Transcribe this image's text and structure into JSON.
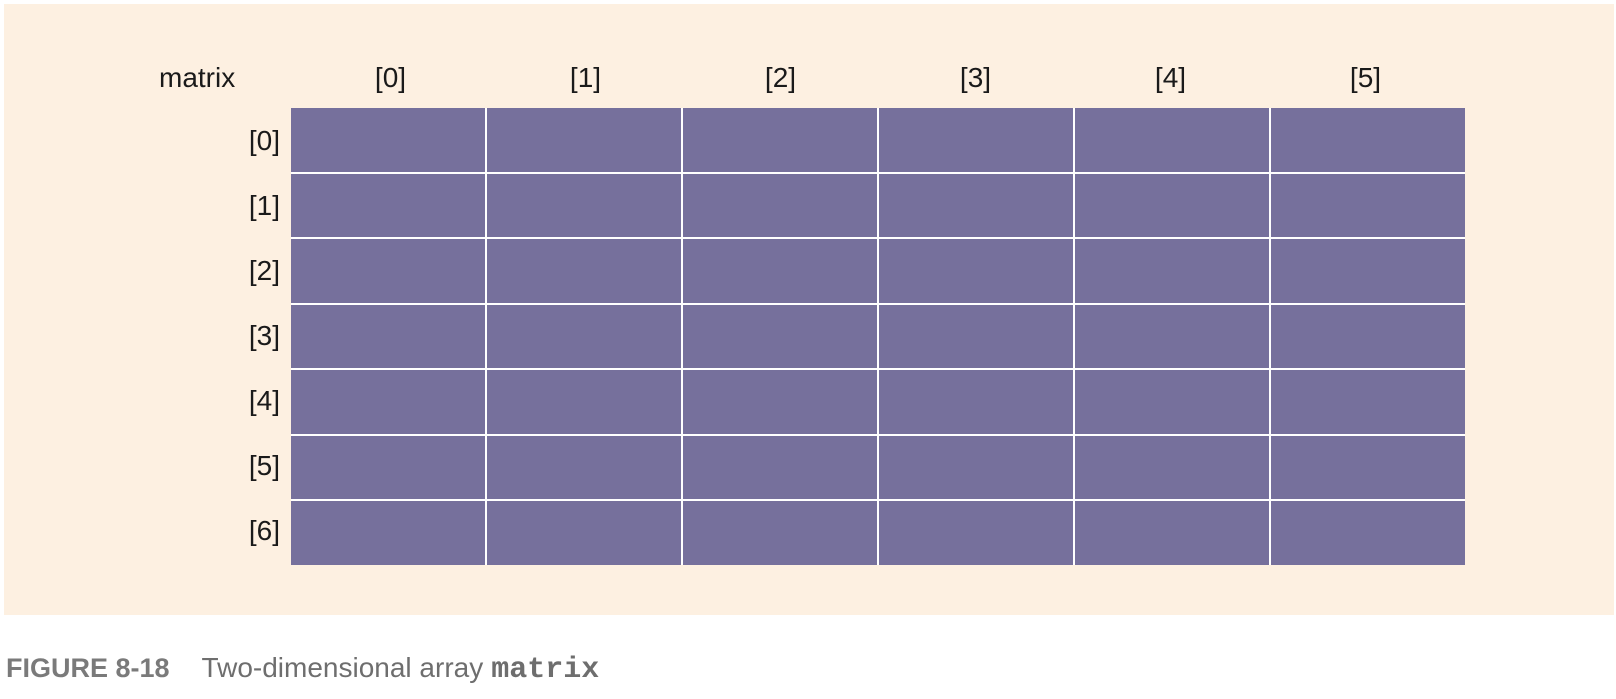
{
  "figure": {
    "array_name": "matrix",
    "column_indices": [
      "[0]",
      "[1]",
      "[2]",
      "[3]",
      "[4]",
      "[5]"
    ],
    "row_indices": [
      "[0]",
      "[1]",
      "[2]",
      "[3]",
      "[4]",
      "[5]",
      "[6]"
    ],
    "rows": 7,
    "columns": 6,
    "cell_color": "#76709c",
    "background_color": "#fdf0e1"
  },
  "caption": {
    "number": "FIGURE 8-18",
    "text": "Two-dimensional array",
    "code": "matrix"
  }
}
